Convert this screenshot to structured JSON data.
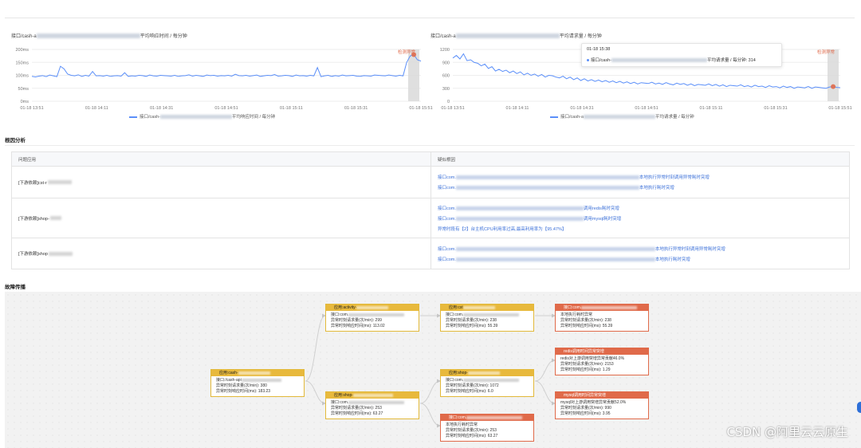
{
  "charts": {
    "left": {
      "title_prefix": "接口/cash-a",
      "title_suffix": "平均响应时间 / 每分钟",
      "legend_prefix": "接口/cash-",
      "legend_suffix": "平均响应时间 / 每分钟",
      "marker": "检测异常"
    },
    "right": {
      "title_prefix": "接口/cash-a",
      "title_suffix": "平均请求量 / 每分钟",
      "legend_prefix": "接口/cash-a",
      "legend_suffix": "平均请求量 / 每分钟",
      "marker": "检测异常",
      "tooltip_time": "01-18 15:38",
      "tooltip_prefix": "接口/cash-",
      "tooltip_suffix": "平均请求量 / 每分钟: 314"
    }
  },
  "chart_data": [
    {
      "type": "line",
      "title": "接口/cash-a… 平均响应时间 / 每分钟",
      "y_ticks": [
        "200ms",
        "150ms",
        "100ms",
        "50ms",
        "0ms"
      ],
      "ylim": [
        0,
        200
      ],
      "x_ticks": [
        "01-18 13:51",
        "01-18 14:11",
        "01-18 14:31",
        "01-18 14:51",
        "01-18 15:11",
        "01-18 15:31",
        "01-18 15:51"
      ],
      "series": [
        {
          "name": "平均响应时间",
          "color": "#5b8ff9",
          "values": [
            96,
            94,
            97,
            99,
            95,
            101,
            98,
            95,
            135,
            125,
            105,
            100,
            98,
            102,
            96,
            100,
            97,
            115,
            98,
            99,
            97,
            100,
            96,
            98,
            99,
            97,
            110,
            96,
            98,
            97,
            100,
            99,
            96,
            101,
            98,
            97,
            100,
            99,
            98,
            97,
            100,
            96,
            98,
            99,
            102,
            97,
            100,
            98,
            96,
            101,
            99,
            100,
            97,
            99,
            98,
            100,
            97,
            104,
            99,
            98,
            100,
            97,
            99,
            101,
            96,
            98,
            100,
            99,
            103,
            97,
            98,
            100,
            99,
            96,
            101,
            98,
            99,
            97,
            100,
            98,
            130,
            95,
            98,
            100,
            96,
            99,
            97,
            101,
            98,
            99,
            100,
            97,
            96,
            99,
            98,
            97,
            101,
            100,
            99,
            98,
            101,
            99,
            97,
            100,
            98,
            150,
            175,
            180,
            160,
            155
          ]
        }
      ]
    },
    {
      "type": "line",
      "title": "接口/cash-a… 平均请求量 / 每分钟",
      "y_ticks": [
        "1200",
        "900",
        "600",
        "300",
        "0"
      ],
      "ylim": [
        0,
        1200
      ],
      "x_ticks": [
        "01-18 13:51",
        "01-18 14:11",
        "01-18 14:31",
        "01-18 14:51",
        "01-18 15:11",
        "01-18 15:31",
        "01-18 15:51"
      ],
      "series": [
        {
          "name": "平均请求量",
          "color": "#5b8ff9",
          "values": [
            1000,
            1060,
            980,
            1100,
            940,
            960,
            900,
            880,
            820,
            860,
            760,
            800,
            700,
            740,
            690,
            720,
            660,
            700,
            640,
            680,
            610,
            650,
            600,
            630,
            580,
            620,
            560,
            600,
            590,
            560,
            540,
            580,
            520,
            560,
            500,
            540,
            480,
            520,
            470,
            500,
            460,
            490,
            450,
            480,
            440,
            470,
            430,
            460,
            420,
            450,
            410,
            440,
            400,
            430,
            420,
            410,
            440,
            400,
            420,
            390,
            430,
            400,
            380,
            420,
            390,
            410,
            370,
            400,
            360,
            390,
            380,
            370,
            400,
            360,
            390,
            350,
            380,
            340,
            370,
            360,
            350,
            380,
            340,
            360,
            330,
            370,
            340,
            350,
            320,
            360,
            330,
            340,
            310,
            350,
            320,
            340,
            300,
            330,
            320,
            310,
            340,
            300,
            330,
            320,
            310,
            300,
            330,
            340,
            320,
            314
          ]
        }
      ]
    }
  ],
  "root_cause": {
    "section_title": "根因分析",
    "header_left": "问题应用",
    "header_right": "疑似根因",
    "rows": [
      {
        "app": "[下游依赖]cst-r",
        "causes": [
          {
            "prefix": "接口com.",
            "suffix": "本地执行异常时刻调用异常耗时突增"
          },
          {
            "prefix": "接口com.",
            "suffix": "本地执行耗时突增"
          }
        ]
      },
      {
        "app": "[下游依赖]shop-",
        "causes": [
          {
            "prefix": "接口com.",
            "suffix": "调用redis耗时突增"
          },
          {
            "prefix": "接口com.",
            "suffix": "调用mysql耗时突增"
          },
          {
            "prefix": "异常时段有【2】台主机CPU利用率过高,最高利用率为【95.47%】",
            "suffix": ""
          }
        ]
      },
      {
        "app": "[下游依赖]shop",
        "causes": [
          {
            "prefix": "接口com.",
            "suffix": "本地执行异常时刻调用异常耗时突增"
          },
          {
            "prefix": "接口com.",
            "suffix": "本地执行耗时突增"
          }
        ]
      }
    ]
  },
  "propagation": {
    "section_title": "故障传播",
    "nodes": {
      "n1": {
        "title": "应用:cash-",
        "l1": "接口:/cash-api",
        "l2": "异常时刻请求量(次/min): 380",
        "l3": "异常时刻响应时间(ms): 183.23"
      },
      "n2": {
        "title": "应用:activity-",
        "l1": "接口:com.",
        "l2": "异常时刻请求量(次/min): 299",
        "l3": "异常时刻响应时间(ms): 113.02"
      },
      "n3": {
        "title": "应用:shop-",
        "l1": "接口:com.",
        "l2": "异常时刻请求量(次/min): 253",
        "l3": "异常时刻响应时间(ms): 63.27"
      },
      "n4": {
        "title": "应用:cst",
        "l1": "接口:com.",
        "l2": "异常时刻请求量(次/min): 238",
        "l3": "异常时刻响应时间(ms): 55.39"
      },
      "n5": {
        "title": "应用:shop-",
        "l1": "接口:com.",
        "l2": "异常时刻请求量(次/min): 1072",
        "l3": "异常时刻响应时间(ms): 6.0"
      },
      "n6": {
        "title": "接口:com.",
        "l1": "本地执行耗时异常",
        "l2": "异常时刻请求量(次/min): 253",
        "l3": "异常时刻响应时间(ms): 63.27"
      },
      "n7": {
        "title": "接口:com.",
        "l1": "本地执行耗时异常",
        "l2": "异常时刻请求量(次/min): 238",
        "l3": "异常时刻响应时间(ms): 55.39"
      },
      "n8": {
        "title": "redis调用时间异常突增",
        "l1": "redis对上游调用突增异常贡献46.0%",
        "l2": "异常时刻请求量(次/min): 2153",
        "l3": "异常时刻响应时间(ms): 1.29"
      },
      "n9": {
        "title": "mysql调用时间异常突增",
        "l1": "mysql对上游调用突增异常贡献52.0%",
        "l2": "异常时刻请求量(次/min): 990",
        "l3": "异常时刻响应时间(ms): 3.95"
      }
    }
  },
  "watermark": "CSDN @阿里云云原生",
  "colors": {
    "line": "#5b8ff9",
    "warn": "#e8b93c",
    "error": "#e06a4a",
    "link": "#3a6fd8"
  }
}
